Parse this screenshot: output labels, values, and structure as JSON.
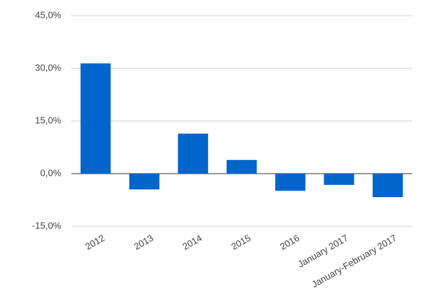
{
  "chart_data": {
    "type": "bar",
    "categories": [
      "2012",
      "2013",
      "2014",
      "2015",
      "2016",
      "January 2017",
      "January-February 2017"
    ],
    "values": [
      31.4,
      -4.5,
      11.4,
      3.9,
      -4.9,
      -3.2,
      -6.7
    ],
    "color": "#0066cc",
    "ylim": [
      -15,
      45
    ],
    "yticks": [
      {
        "value": -15,
        "label": "-15,0%"
      },
      {
        "value": 0,
        "label": "0,0%"
      },
      {
        "value": 15,
        "label": "15,0%"
      },
      {
        "value": 30,
        "label": "30,0%"
      },
      {
        "value": 45,
        "label": "45,0%"
      }
    ],
    "grid": true
  }
}
